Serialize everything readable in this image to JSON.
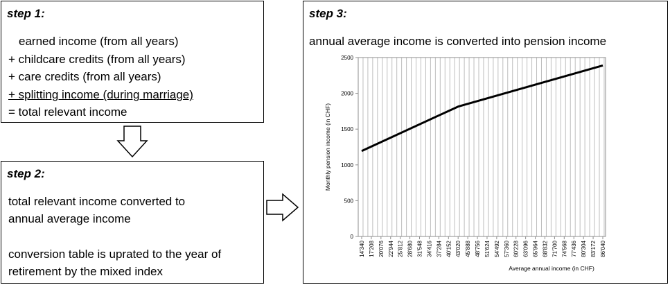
{
  "step1": {
    "title": "step 1:",
    "lines": [
      "earned income (from all years)",
      "+ childcare credits (from all years)",
      "+ care credits (from all years)",
      "+ splitting income (during marriage)",
      "= total relevant income"
    ]
  },
  "step2": {
    "title": "step 2:",
    "lines": [
      "total relevant income converted to",
      "annual average income",
      "conversion table is uprated to the year of",
      "retirement by the mixed index"
    ]
  },
  "step3": {
    "title": "step 3:",
    "subtitle": "annual average income is converted into pension income"
  },
  "chart_data": {
    "type": "line",
    "xlabel": "Average annual income (in CHF)",
    "ylabel": "Monthly pension income (in CHF)",
    "ylim": [
      0,
      2500
    ],
    "yticks": [
      "0",
      "500",
      "1000",
      "1500",
      "2000",
      "2500"
    ],
    "x_ticks": [
      "14'340",
      "17'208",
      "20'076",
      "22'944",
      "25'812",
      "28'680",
      "31'548",
      "34'416",
      "37'284",
      "40'152",
      "43'020",
      "45'888",
      "48'756",
      "51'624",
      "54'492",
      "57'360",
      "60'228",
      "63'096",
      "65'964",
      "68'832",
      "71'700",
      "74'568",
      "77'436",
      "80'304",
      "83'172",
      "86'040"
    ],
    "grid": "vertical",
    "series": [
      {
        "x": [
          14340,
          43020,
          86040
        ],
        "y": [
          1195,
          1815,
          2390
        ]
      }
    ]
  }
}
